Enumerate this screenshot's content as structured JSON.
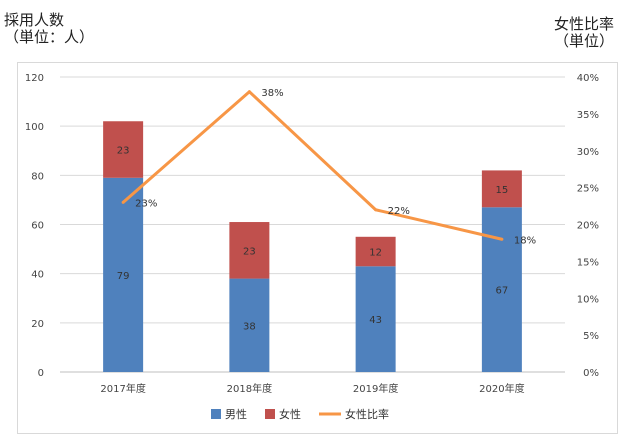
{
  "left_axis_title": [
    "採用人数",
    "（単位：人）"
  ],
  "right_axis_title": [
    "女性比率",
    "（単位）"
  ],
  "chart_data": {
    "type": "bar",
    "stacked": true,
    "categories": [
      "2017年度",
      "2018年度",
      "2019年度",
      "2020年度"
    ],
    "series": [
      {
        "name": "男性",
        "type": "bar",
        "axis": "left",
        "color": "#4f81bd",
        "values": [
          79,
          38,
          43,
          67
        ]
      },
      {
        "name": "女性",
        "type": "bar",
        "axis": "left",
        "color": "#c0504d",
        "values": [
          23,
          23,
          12,
          15
        ]
      },
      {
        "name": "女性比率",
        "type": "line",
        "axis": "right",
        "color": "#f79646",
        "values": [
          0.23,
          0.38,
          0.22,
          0.18
        ]
      }
    ],
    "data_labels": {
      "男性": [
        "79",
        "38",
        "43",
        "67"
      ],
      "女性": [
        "23",
        "23",
        "12",
        "15"
      ],
      "女性比率": [
        "23%",
        "38%",
        "22%",
        "18%"
      ]
    },
    "ylim": [
      0,
      120
    ],
    "y_ticks": [
      "0",
      "20",
      "40",
      "60",
      "80",
      "100",
      "120"
    ],
    "y2lim": [
      0,
      0.4
    ],
    "y2_ticks": [
      "0%",
      "5%",
      "10%",
      "15%",
      "20%",
      "25%",
      "30%",
      "35%",
      "40%"
    ],
    "grid": true,
    "legend_position": "bottom"
  }
}
